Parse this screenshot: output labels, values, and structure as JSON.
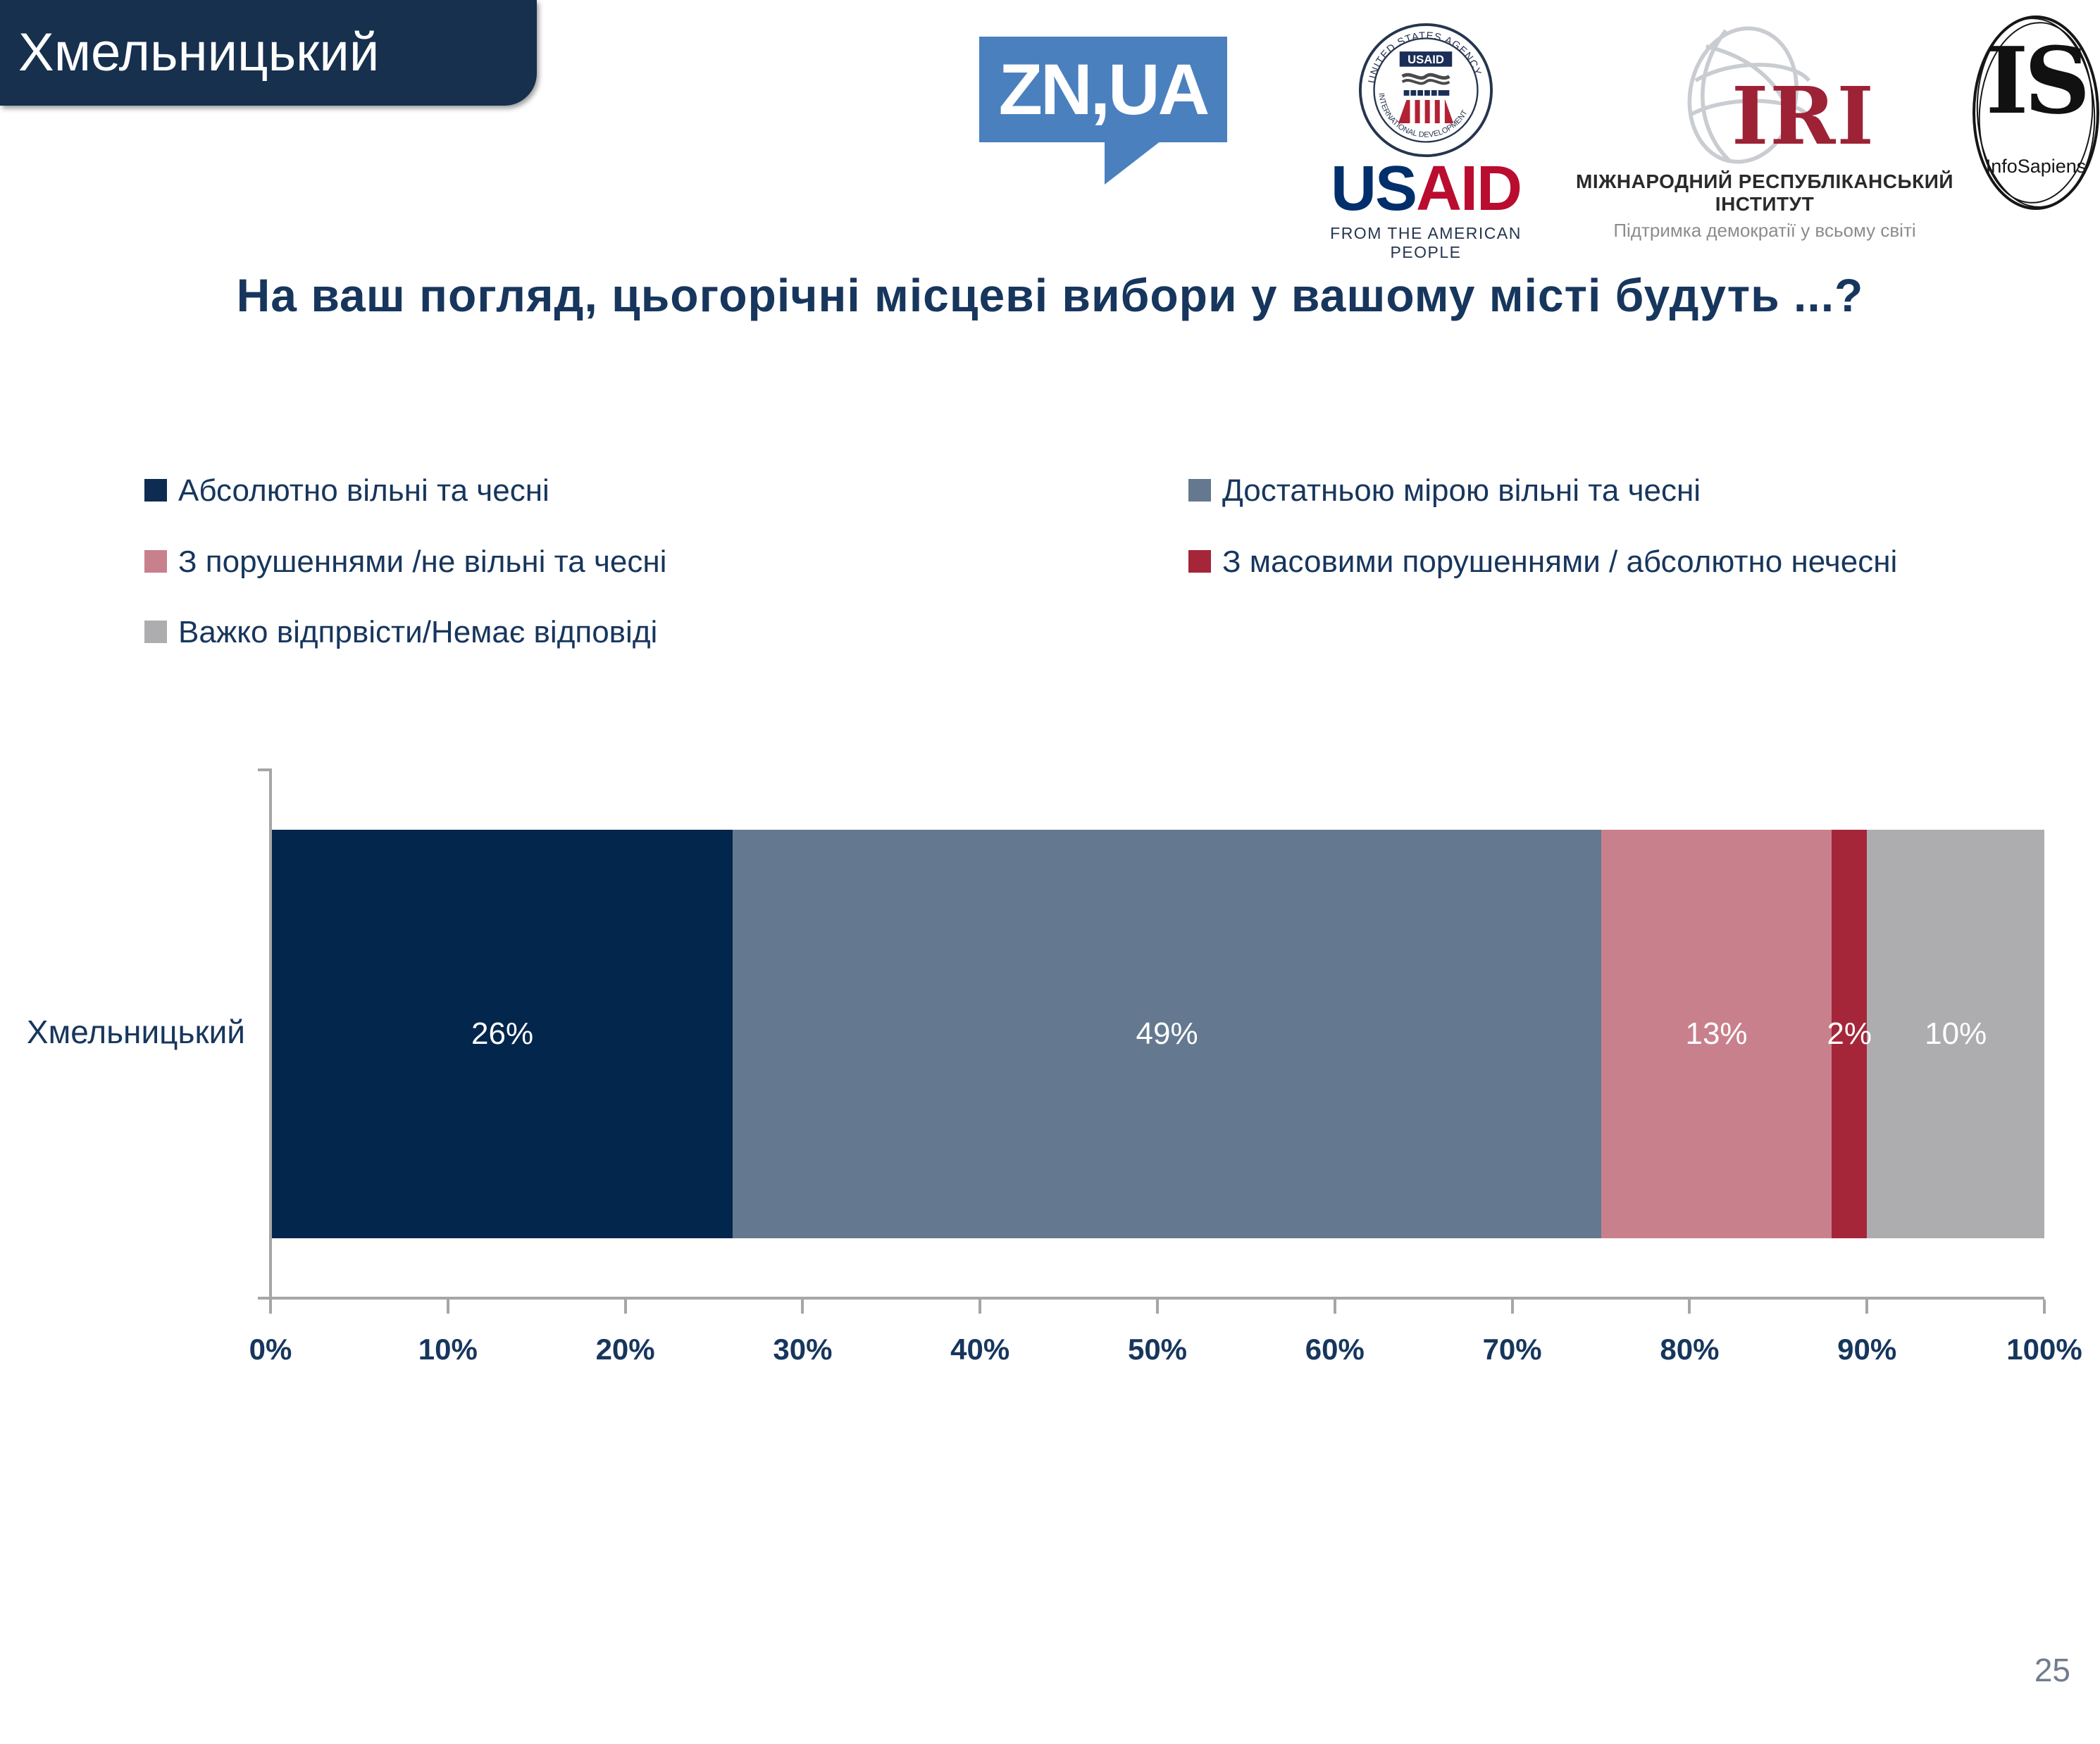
{
  "banner": {
    "label": "Хмельницький"
  },
  "title": "На ваш погляд, цьогорічні місцеві вибори у вашому місті будуть ...?",
  "page_number": "25",
  "logos": {
    "znua": {
      "text": "ZN,UA",
      "color": "#4A80BE"
    },
    "usaid": {
      "seal_label": "USAID",
      "seal_arc_top": "UNITED STATES AGENCY",
      "seal_arc_bottom": "INTERNATIONAL DEVELOPMENT",
      "wordmark_us": "US",
      "wordmark_aid": "AID",
      "tagline": "FROM THE AMERICAN PEOPLE",
      "navy": "#002F6C",
      "red": "#BA0C2F"
    },
    "iri": {
      "acronym": "IRI",
      "name_line": "МІЖНАРОДНИЙ РЕСПУБЛІКАНСЬКИЙ ІНСТИТУТ",
      "tagline": "Підтримка демократії у всьому світі",
      "red": "#9D2235"
    },
    "infosapiens": {
      "acronym": "IS",
      "name": "InfoSapiens"
    }
  },
  "legend": {
    "items": [
      {
        "label": "Абсолютно вільні та чесні",
        "color": "#0E2C52"
      },
      {
        "label": "Достатньою мірою вільні та чесні",
        "color": "#64798F"
      },
      {
        "label": "З порушеннями /не вільні та чесні",
        "color": "#C8808C"
      },
      {
        "label": "З масовими порушеннями / абсолютно нечесні",
        "color": "#A52639"
      },
      {
        "label": "Важко відпрвісти/Немає відповіді",
        "color": "#ADADAF"
      }
    ]
  },
  "chart_data": {
    "type": "bar",
    "orientation": "horizontal_stacked",
    "title": "На ваш погляд, цьогорічні місцеві вибори у вашому місті будуть ...?",
    "categories": [
      "Хмельницький"
    ],
    "series": [
      {
        "name": "Абсолютно вільні та чесні",
        "color": "#03264C",
        "values": [
          26
        ]
      },
      {
        "name": "Достатньою мірою вільні та чесні",
        "color": "#64798F",
        "values": [
          49
        ]
      },
      {
        "name": "З порушеннями /не вільні та чесні",
        "color": "#C8808C",
        "values": [
          13
        ]
      },
      {
        "name": "З масовими порушеннями / абсолютно нечесні",
        "color": "#A52639",
        "values": [
          2
        ]
      },
      {
        "name": "Важко відпрвісти/Немає відповіді",
        "color": "#ADADAF",
        "values": [
          10
        ]
      }
    ],
    "value_labels": [
      "26%",
      "49%",
      "13%",
      "2%",
      "10%"
    ],
    "x_ticks": [
      "0%",
      "10%",
      "20%",
      "30%",
      "40%",
      "50%",
      "60%",
      "70%",
      "80%",
      "90%",
      "100%"
    ],
    "xlim": [
      0,
      100
    ],
    "grid": false,
    "legend_position": "top",
    "axis_color": "#A6A6A6",
    "label_color": "#17365D"
  }
}
